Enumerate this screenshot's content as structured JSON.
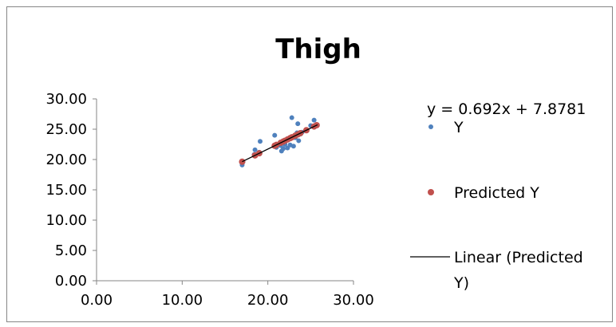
{
  "chart_data": {
    "type": "scatter",
    "title": "Thigh",
    "xlabel": "",
    "ylabel": "",
    "xlim": [
      0,
      30
    ],
    "ylim": [
      0,
      30
    ],
    "x_ticks": [
      "0.00",
      "10.00",
      "20.00",
      "30.00"
    ],
    "y_ticks": [
      "0.00",
      "5.00",
      "10.00",
      "15.00",
      "20.00",
      "25.00",
      "30.00"
    ],
    "grid": false,
    "legend_position": "right",
    "trendline_equation": "y = 0.692x + 7.8781",
    "trendline": {
      "slope": 0.692,
      "intercept": 7.8781,
      "x_range": [
        17.0,
        25.8
      ]
    },
    "series": [
      {
        "name": "Y",
        "color": "#4f81bd",
        "points": [
          [
            17.0,
            19.1
          ],
          [
            17.1,
            19.6
          ],
          [
            18.4,
            20.8
          ],
          [
            18.5,
            21.6
          ],
          [
            19.0,
            21.2
          ],
          [
            19.1,
            23.0
          ],
          [
            20.8,
            24.0
          ],
          [
            21.0,
            22.0
          ],
          [
            21.5,
            22.3
          ],
          [
            21.6,
            21.4
          ],
          [
            21.8,
            21.8
          ],
          [
            22.0,
            22.5
          ],
          [
            22.1,
            23.1
          ],
          [
            22.3,
            21.9
          ],
          [
            22.6,
            22.4
          ],
          [
            22.8,
            26.9
          ],
          [
            23.0,
            22.2
          ],
          [
            23.2,
            23.6
          ],
          [
            23.4,
            24.4
          ],
          [
            23.5,
            25.9
          ],
          [
            23.6,
            23.1
          ],
          [
            23.8,
            24.2
          ],
          [
            24.0,
            24.5
          ],
          [
            24.5,
            24.8
          ],
          [
            25.0,
            25.6
          ],
          [
            25.4,
            26.5
          ],
          [
            25.7,
            25.6
          ]
        ]
      },
      {
        "name": "Predicted Y",
        "color": "#c0504d",
        "points": [
          [
            17.0,
            19.64
          ],
          [
            18.5,
            20.68
          ],
          [
            19.0,
            21.03
          ],
          [
            20.8,
            22.27
          ],
          [
            21.0,
            22.41
          ],
          [
            21.5,
            22.76
          ],
          [
            21.8,
            22.96
          ],
          [
            22.0,
            23.1
          ],
          [
            22.3,
            23.31
          ],
          [
            22.6,
            23.52
          ],
          [
            22.8,
            23.66
          ],
          [
            23.2,
            23.93
          ],
          [
            23.5,
            24.14
          ],
          [
            23.8,
            24.35
          ],
          [
            24.5,
            24.83
          ],
          [
            25.4,
            25.45
          ],
          [
            25.7,
            25.66
          ]
        ]
      }
    ],
    "legend": [
      {
        "label": "Y",
        "marker": "point",
        "color": "#4f81bd"
      },
      {
        "label": "Predicted Y",
        "marker": "point",
        "color": "#c0504d"
      },
      {
        "label_lines": [
          "Linear (Predicted",
          "Y)"
        ],
        "marker": "line",
        "color": "#000000"
      }
    ]
  }
}
